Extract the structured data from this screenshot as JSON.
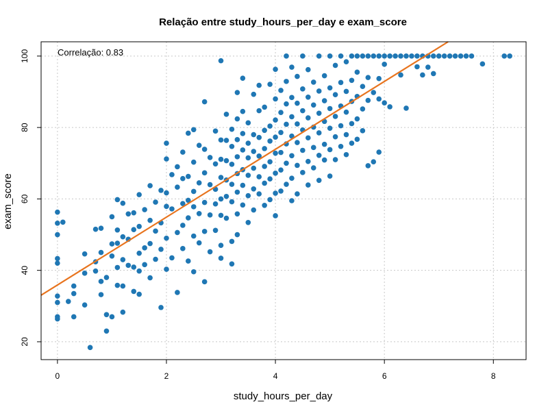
{
  "chart_data": {
    "type": "scatter",
    "title": "Relação entre study_hours_per_day e exam_score",
    "xlabel": "study_hours_per_day",
    "ylabel": "exam_score",
    "xlim": [
      -0.3,
      8.6
    ],
    "ylim": [
      15,
      104
    ],
    "xticks": [
      0,
      2,
      4,
      6,
      8
    ],
    "yticks": [
      20,
      40,
      60,
      80,
      100
    ],
    "grid": true,
    "annotation": "Correlação: 0.83",
    "point_color": "#1f77b4",
    "trend_color": "#e8741e",
    "trendline": {
      "slope": 9.5,
      "intercept": 35.9
    },
    "points": [
      [
        0.0,
        56.3
      ],
      [
        0.0,
        53.2
      ],
      [
        0.0,
        50.0
      ],
      [
        0.0,
        43.3
      ],
      [
        0.0,
        42.0
      ],
      [
        0.0,
        32.8
      ],
      [
        0.0,
        31.0
      ],
      [
        0.0,
        27.0
      ],
      [
        0.0,
        26.4
      ],
      [
        0.1,
        53.5
      ],
      [
        0.2,
        31.3
      ],
      [
        0.3,
        35.6
      ],
      [
        0.3,
        33.5
      ],
      [
        0.3,
        27.0
      ],
      [
        0.5,
        44.6
      ],
      [
        0.5,
        39.2
      ],
      [
        0.5,
        30.3
      ],
      [
        0.6,
        18.4
      ],
      [
        0.7,
        51.5
      ],
      [
        0.7,
        42.4
      ],
      [
        0.7,
        39.8
      ],
      [
        0.8,
        51.8
      ],
      [
        0.8,
        45.0
      ],
      [
        0.8,
        36.9
      ],
      [
        0.8,
        33.2
      ],
      [
        0.9,
        38.0
      ],
      [
        0.9,
        27.6
      ],
      [
        0.9,
        23.0
      ],
      [
        1.0,
        55.0
      ],
      [
        1.0,
        47.4
      ],
      [
        1.0,
        44.0
      ],
      [
        1.0,
        27.0
      ],
      [
        1.1,
        59.8
      ],
      [
        1.1,
        51.3
      ],
      [
        1.1,
        47.6
      ],
      [
        1.1,
        40.8
      ],
      [
        1.1,
        35.8
      ],
      [
        1.2,
        58.8
      ],
      [
        1.2,
        49.4
      ],
      [
        1.2,
        43.0
      ],
      [
        1.2,
        35.6
      ],
      [
        1.2,
        28.3
      ],
      [
        1.3,
        55.8
      ],
      [
        1.3,
        48.7
      ],
      [
        1.3,
        41.4
      ],
      [
        1.4,
        56.1
      ],
      [
        1.4,
        51.4
      ],
      [
        1.4,
        40.9
      ],
      [
        1.4,
        34.1
      ],
      [
        1.5,
        61.2
      ],
      [
        1.5,
        52.3
      ],
      [
        1.5,
        44.8
      ],
      [
        1.5,
        39.8
      ],
      [
        1.5,
        33.3
      ],
      [
        1.6,
        57.0
      ],
      [
        1.6,
        46.3
      ],
      [
        1.6,
        41.6
      ],
      [
        1.7,
        63.7
      ],
      [
        1.7,
        54.0
      ],
      [
        1.7,
        47.5
      ],
      [
        1.7,
        37.9
      ],
      [
        1.8,
        59.1
      ],
      [
        1.8,
        51.0
      ],
      [
        1.8,
        43.1
      ],
      [
        1.9,
        62.4
      ],
      [
        1.9,
        53.3
      ],
      [
        1.9,
        45.9
      ],
      [
        1.9,
        29.6
      ],
      [
        2.0,
        75.6
      ],
      [
        2.0,
        71.2
      ],
      [
        2.0,
        61.7
      ],
      [
        2.0,
        57.9
      ],
      [
        2.0,
        49.0
      ],
      [
        2.0,
        40.3
      ],
      [
        2.1,
        66.8
      ],
      [
        2.1,
        57.2
      ],
      [
        2.1,
        43.5
      ],
      [
        2.2,
        69.0
      ],
      [
        2.2,
        63.3
      ],
      [
        2.2,
        50.6
      ],
      [
        2.2,
        33.8
      ],
      [
        2.3,
        73.1
      ],
      [
        2.3,
        65.7
      ],
      [
        2.3,
        58.7
      ],
      [
        2.3,
        52.6
      ],
      [
        2.3,
        46.1
      ],
      [
        2.4,
        78.4
      ],
      [
        2.4,
        66.3
      ],
      [
        2.4,
        59.6
      ],
      [
        2.4,
        54.7
      ],
      [
        2.4,
        42.6
      ],
      [
        2.5,
        79.4
      ],
      [
        2.5,
        70.3
      ],
      [
        2.5,
        62.1
      ],
      [
        2.5,
        57.8
      ],
      [
        2.5,
        49.6
      ],
      [
        2.5,
        39.6
      ],
      [
        2.6,
        75.0
      ],
      [
        2.6,
        64.5
      ],
      [
        2.6,
        55.9
      ],
      [
        2.6,
        47.7
      ],
      [
        2.7,
        87.2
      ],
      [
        2.7,
        73.9
      ],
      [
        2.7,
        67.3
      ],
      [
        2.7,
        59.0
      ],
      [
        2.7,
        50.9
      ],
      [
        2.7,
        36.8
      ],
      [
        2.8,
        71.6
      ],
      [
        2.8,
        64.0
      ],
      [
        2.8,
        55.5
      ],
      [
        2.8,
        45.2
      ],
      [
        2.9,
        79.0
      ],
      [
        2.9,
        69.8
      ],
      [
        2.9,
        62.7
      ],
      [
        2.9,
        58.6
      ],
      [
        2.9,
        51.2
      ],
      [
        3.0,
        98.7
      ],
      [
        3.0,
        76.5
      ],
      [
        3.0,
        71.1
      ],
      [
        3.0,
        66.0
      ],
      [
        3.0,
        60.0
      ],
      [
        3.0,
        55.4
      ],
      [
        3.0,
        47.0
      ],
      [
        3.0,
        43.4
      ],
      [
        3.1,
        83.7
      ],
      [
        3.1,
        76.4
      ],
      [
        3.1,
        70.7
      ],
      [
        3.1,
        65.3
      ],
      [
        3.1,
        60.7
      ],
      [
        3.1,
        54.6
      ],
      [
        3.2,
        79.5
      ],
      [
        3.2,
        74.7
      ],
      [
        3.2,
        69.7
      ],
      [
        3.2,
        64.1
      ],
      [
        3.2,
        59.2
      ],
      [
        3.2,
        48.1
      ],
      [
        3.2,
        41.8
      ],
      [
        3.3,
        89.8
      ],
      [
        3.3,
        82.4
      ],
      [
        3.3,
        76.6
      ],
      [
        3.3,
        71.8
      ],
      [
        3.3,
        67.1
      ],
      [
        3.3,
        61.9
      ],
      [
        3.3,
        55.8
      ],
      [
        3.3,
        50.0
      ],
      [
        3.4,
        93.8
      ],
      [
        3.4,
        84.5
      ],
      [
        3.4,
        78.3
      ],
      [
        3.4,
        73.7
      ],
      [
        3.4,
        68.2
      ],
      [
        3.4,
        63.8
      ],
      [
        3.4,
        58.3
      ],
      [
        3.5,
        81.3
      ],
      [
        3.5,
        75.6
      ],
      [
        3.5,
        71.5
      ],
      [
        3.5,
        66.6
      ],
      [
        3.5,
        60.9
      ],
      [
        3.5,
        53.4
      ],
      [
        3.6,
        89.3
      ],
      [
        3.6,
        78.0
      ],
      [
        3.6,
        73.3
      ],
      [
        3.6,
        68.6
      ],
      [
        3.6,
        62.8
      ],
      [
        3.6,
        56.9
      ],
      [
        3.7,
        91.8
      ],
      [
        3.7,
        84.7
      ],
      [
        3.7,
        77.2
      ],
      [
        3.7,
        72.0
      ],
      [
        3.7,
        66.2
      ],
      [
        3.7,
        61.4
      ],
      [
        3.8,
        85.7
      ],
      [
        3.8,
        79.2
      ],
      [
        3.8,
        74.1
      ],
      [
        3.8,
        69.1
      ],
      [
        3.8,
        64.4
      ],
      [
        3.8,
        58.2
      ],
      [
        3.9,
        92.1
      ],
      [
        3.9,
        80.4
      ],
      [
        3.9,
        76.2
      ],
      [
        3.9,
        70.4
      ],
      [
        3.9,
        65.6
      ],
      [
        3.9,
        59.8
      ],
      [
        4.0,
        96.3
      ],
      [
        4.0,
        88.0
      ],
      [
        4.0,
        82.1
      ],
      [
        4.0,
        77.3
      ],
      [
        4.0,
        72.8
      ],
      [
        4.0,
        67.2
      ],
      [
        4.0,
        61.6
      ],
      [
        4.0,
        55.3
      ],
      [
        4.1,
        90.4
      ],
      [
        4.1,
        84.2
      ],
      [
        4.1,
        78.6
      ],
      [
        4.1,
        73.0
      ],
      [
        4.1,
        68.1
      ],
      [
        4.1,
        62.2
      ],
      [
        4.2,
        100.0
      ],
      [
        4.2,
        92.9
      ],
      [
        4.2,
        86.6
      ],
      [
        4.2,
        80.9
      ],
      [
        4.2,
        75.4
      ],
      [
        4.2,
        70.0
      ],
      [
        4.2,
        64.1
      ],
      [
        4.3,
        96.9
      ],
      [
        4.3,
        88.4
      ],
      [
        4.3,
        83.0
      ],
      [
        4.3,
        77.6
      ],
      [
        4.3,
        72.1
      ],
      [
        4.3,
        65.8
      ],
      [
        4.3,
        59.5
      ],
      [
        4.4,
        94.3
      ],
      [
        4.4,
        86.8
      ],
      [
        4.4,
        81.0
      ],
      [
        4.4,
        75.8
      ],
      [
        4.4,
        69.4
      ],
      [
        4.4,
        61.4
      ],
      [
        4.5,
        100.0
      ],
      [
        4.5,
        90.8
      ],
      [
        4.5,
        84.7
      ],
      [
        4.5,
        79.3
      ],
      [
        4.5,
        73.6
      ],
      [
        4.5,
        67.4
      ],
      [
        4.6,
        96.2
      ],
      [
        4.6,
        88.5
      ],
      [
        4.6,
        82.7
      ],
      [
        4.6,
        77.1
      ],
      [
        4.6,
        70.5
      ],
      [
        4.6,
        63.9
      ],
      [
        4.7,
        92.7
      ],
      [
        4.7,
        86.3
      ],
      [
        4.7,
        80.1
      ],
      [
        4.7,
        74.4
      ],
      [
        4.7,
        68.7
      ],
      [
        4.8,
        100.0
      ],
      [
        4.8,
        90.2
      ],
      [
        4.8,
        84.0
      ],
      [
        4.8,
        78.5
      ],
      [
        4.8,
        72.2
      ],
      [
        4.8,
        65.2
      ],
      [
        4.9,
        94.5
      ],
      [
        4.9,
        87.5
      ],
      [
        4.9,
        81.7
      ],
      [
        4.9,
        75.3
      ],
      [
        4.9,
        70.9
      ],
      [
        5.0,
        100.0
      ],
      [
        5.0,
        91.1
      ],
      [
        5.0,
        85.3
      ],
      [
        5.0,
        79.8
      ],
      [
        5.0,
        73.8
      ],
      [
        5.0,
        66.4
      ],
      [
        5.1,
        97.4
      ],
      [
        5.1,
        89.2
      ],
      [
        5.1,
        83.1
      ],
      [
        5.1,
        77.4
      ],
      [
        5.1,
        71.0
      ],
      [
        5.2,
        100.0
      ],
      [
        5.2,
        92.6
      ],
      [
        5.2,
        86.0
      ],
      [
        5.2,
        80.5
      ],
      [
        5.2,
        74.7
      ],
      [
        5.3,
        98.4
      ],
      [
        5.3,
        90.1
      ],
      [
        5.3,
        84.3
      ],
      [
        5.3,
        78.0
      ],
      [
        5.3,
        72.4
      ],
      [
        5.4,
        100.0
      ],
      [
        5.4,
        93.2
      ],
      [
        5.4,
        87.3
      ],
      [
        5.4,
        81.1
      ],
      [
        5.4,
        75.6
      ],
      [
        5.5,
        100.0
      ],
      [
        5.5,
        95.5
      ],
      [
        5.5,
        88.7
      ],
      [
        5.5,
        82.4
      ],
      [
        5.5,
        76.7
      ],
      [
        5.6,
        100.0
      ],
      [
        5.6,
        91.5
      ],
      [
        5.6,
        85.2
      ],
      [
        5.6,
        79.1
      ],
      [
        5.7,
        100.0
      ],
      [
        5.7,
        94.0
      ],
      [
        5.7,
        87.6
      ],
      [
        5.7,
        69.3
      ],
      [
        5.8,
        100.0
      ],
      [
        5.8,
        89.8
      ],
      [
        5.8,
        70.4
      ],
      [
        5.9,
        100.0
      ],
      [
        5.9,
        93.7
      ],
      [
        5.9,
        88.0
      ],
      [
        5.9,
        73.1
      ],
      [
        6.0,
        100.0
      ],
      [
        6.0,
        97.7
      ],
      [
        6.0,
        86.9
      ],
      [
        6.1,
        100.0
      ],
      [
        6.1,
        85.8
      ],
      [
        6.2,
        100.0
      ],
      [
        6.3,
        100.0
      ],
      [
        6.3,
        94.7
      ],
      [
        6.4,
        100.0
      ],
      [
        6.4,
        85.4
      ],
      [
        6.5,
        100.0
      ],
      [
        6.6,
        100.0
      ],
      [
        6.6,
        97.0
      ],
      [
        6.7,
        100.0
      ],
      [
        6.7,
        94.7
      ],
      [
        6.8,
        100.0
      ],
      [
        6.8,
        96.9
      ],
      [
        6.9,
        100.0
      ],
      [
        6.9,
        95.1
      ],
      [
        7.0,
        100.0
      ],
      [
        7.1,
        100.0
      ],
      [
        7.2,
        100.0
      ],
      [
        7.3,
        100.0
      ],
      [
        7.4,
        100.0
      ],
      [
        7.5,
        100.0
      ],
      [
        7.6,
        100.0
      ],
      [
        7.8,
        97.8
      ],
      [
        8.2,
        100.0
      ],
      [
        8.3,
        100.0
      ]
    ]
  }
}
